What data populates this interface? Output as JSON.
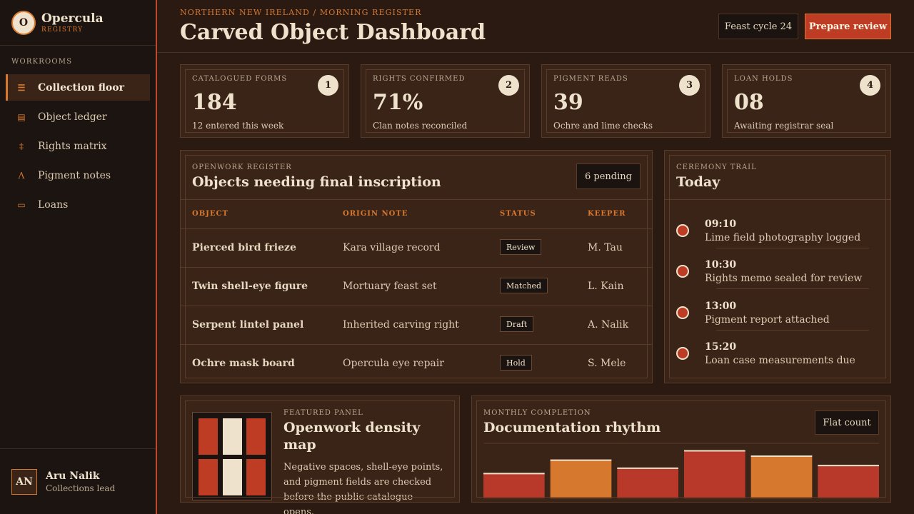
{
  "brand": {
    "logo_letter": "O",
    "name": "Opercula",
    "sub": "REGISTRY"
  },
  "sidebar": {
    "section_label": "WORKROOMS",
    "items": [
      {
        "label": "Collection floor",
        "icon": "list-icon",
        "active": true
      },
      {
        "label": "Object ledger",
        "icon": "ledger-icon",
        "active": false
      },
      {
        "label": "Rights matrix",
        "icon": "matrix-icon",
        "active": false
      },
      {
        "label": "Pigment notes",
        "icon": "pigment-icon",
        "active": false
      },
      {
        "label": "Loans",
        "icon": "loans-icon",
        "active": false
      }
    ]
  },
  "user": {
    "initials": "AN",
    "name": "Aru Nalik",
    "role": "Collections lead"
  },
  "header": {
    "eyebrow": "NORTHERN NEW IRELAND / MORNING REGISTER",
    "title": "Carved Object Dashboard",
    "cycle_label": "Feast cycle 24",
    "primary_label": "Prepare review"
  },
  "stats": [
    {
      "label": "CATALOGUED FORMS",
      "num": "1",
      "value": "184",
      "note": "12 entered this week"
    },
    {
      "label": "RIGHTS CONFIRMED",
      "num": "2",
      "value": "71%",
      "note": "Clan notes reconciled"
    },
    {
      "label": "PIGMENT READS",
      "num": "3",
      "value": "39",
      "note": "Ochre and lime checks"
    },
    {
      "label": "LOAN HOLDS",
      "num": "4",
      "value": "08",
      "note": "Awaiting registrar seal"
    }
  ],
  "register": {
    "kicker": "OPENWORK REGISTER",
    "title": "Objects needing final inscription",
    "pending": "6 pending",
    "columns": [
      "OBJECT",
      "ORIGIN NOTE",
      "STATUS",
      "KEEPER"
    ],
    "rows": [
      {
        "object": "Pierced bird frieze",
        "origin": "Kara village record",
        "status": "Review",
        "keeper": "M. Tau"
      },
      {
        "object": "Twin shell-eye figure",
        "origin": "Mortuary feast set",
        "status": "Matched",
        "keeper": "L. Kain"
      },
      {
        "object": "Serpent lintel panel",
        "origin": "Inherited carving right",
        "status": "Draft",
        "keeper": "A. Nalik"
      },
      {
        "object": "Ochre mask board",
        "origin": "Opercula eye repair",
        "status": "Hold",
        "keeper": "S. Mele"
      }
    ]
  },
  "trail": {
    "kicker": "CEREMONY TRAIL",
    "title": "Today",
    "items": [
      {
        "time": "09:10",
        "text": "Lime field photography logged"
      },
      {
        "time": "10:30",
        "text": "Rights memo sealed for review"
      },
      {
        "time": "13:00",
        "text": "Pigment report attached"
      },
      {
        "time": "15:20",
        "text": "Loan case measurements due"
      }
    ]
  },
  "featured": {
    "kicker": "FEATURED PANEL",
    "title": "Openwork density map",
    "desc": "Negative spaces, shell-eye points, and pigment fields are checked before the public catalogue opens."
  },
  "rhythm": {
    "kicker": "MONTHLY COMPLETION",
    "title": "Documentation rhythm",
    "toggle": "Flat count"
  },
  "colors": {
    "accent": "#d7782f",
    "primary": "#bf3c24",
    "bone": "#efe2cc",
    "panel": "#3a2418"
  },
  "chart_data": {
    "type": "bar",
    "values": [
      38,
      58,
      46,
      72,
      64,
      50
    ],
    "colors": [
      "#b8382a",
      "#d7782f",
      "#b8382a",
      "#b8382a",
      "#d7782f",
      "#b8382a"
    ],
    "title": "Documentation rhythm"
  }
}
